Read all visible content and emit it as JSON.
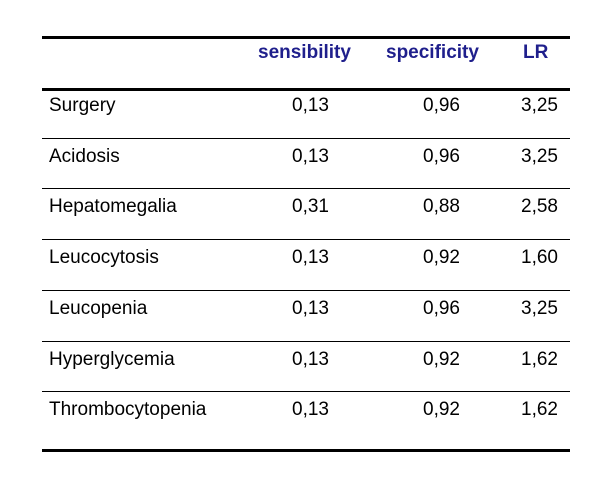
{
  "table": {
    "headers": {
      "label": "",
      "sensibility": "sensibility",
      "specificity": "specificity",
      "lr": "LR"
    },
    "rows": [
      {
        "label": "Surgery",
        "sensibility": "0,13",
        "specificity": "0,96",
        "lr": "3,25"
      },
      {
        "label": "Acidosis",
        "sensibility": "0,13",
        "specificity": "0,96",
        "lr": "3,25"
      },
      {
        "label": "Hepatomegalia",
        "sensibility": "0,31",
        "specificity": "0,88",
        "lr": "2,58"
      },
      {
        "label": "Leucocytosis",
        "sensibility": "0,13",
        "specificity": "0,92",
        "lr": "1,60"
      },
      {
        "label": "Leucopenia",
        "sensibility": "0,13",
        "specificity": "0,96",
        "lr": "3,25"
      },
      {
        "label": "Hyperglycemia",
        "sensibility": "0,13",
        "specificity": "0,92",
        "lr": "1,62"
      },
      {
        "label": "Thrombocytopenia",
        "sensibility": "0,13",
        "specificity": "0,92",
        "lr": "1,62"
      }
    ]
  },
  "colors": {
    "header_text": "#1f1f8c",
    "body_text": "#000000",
    "rules": "#000000"
  }
}
